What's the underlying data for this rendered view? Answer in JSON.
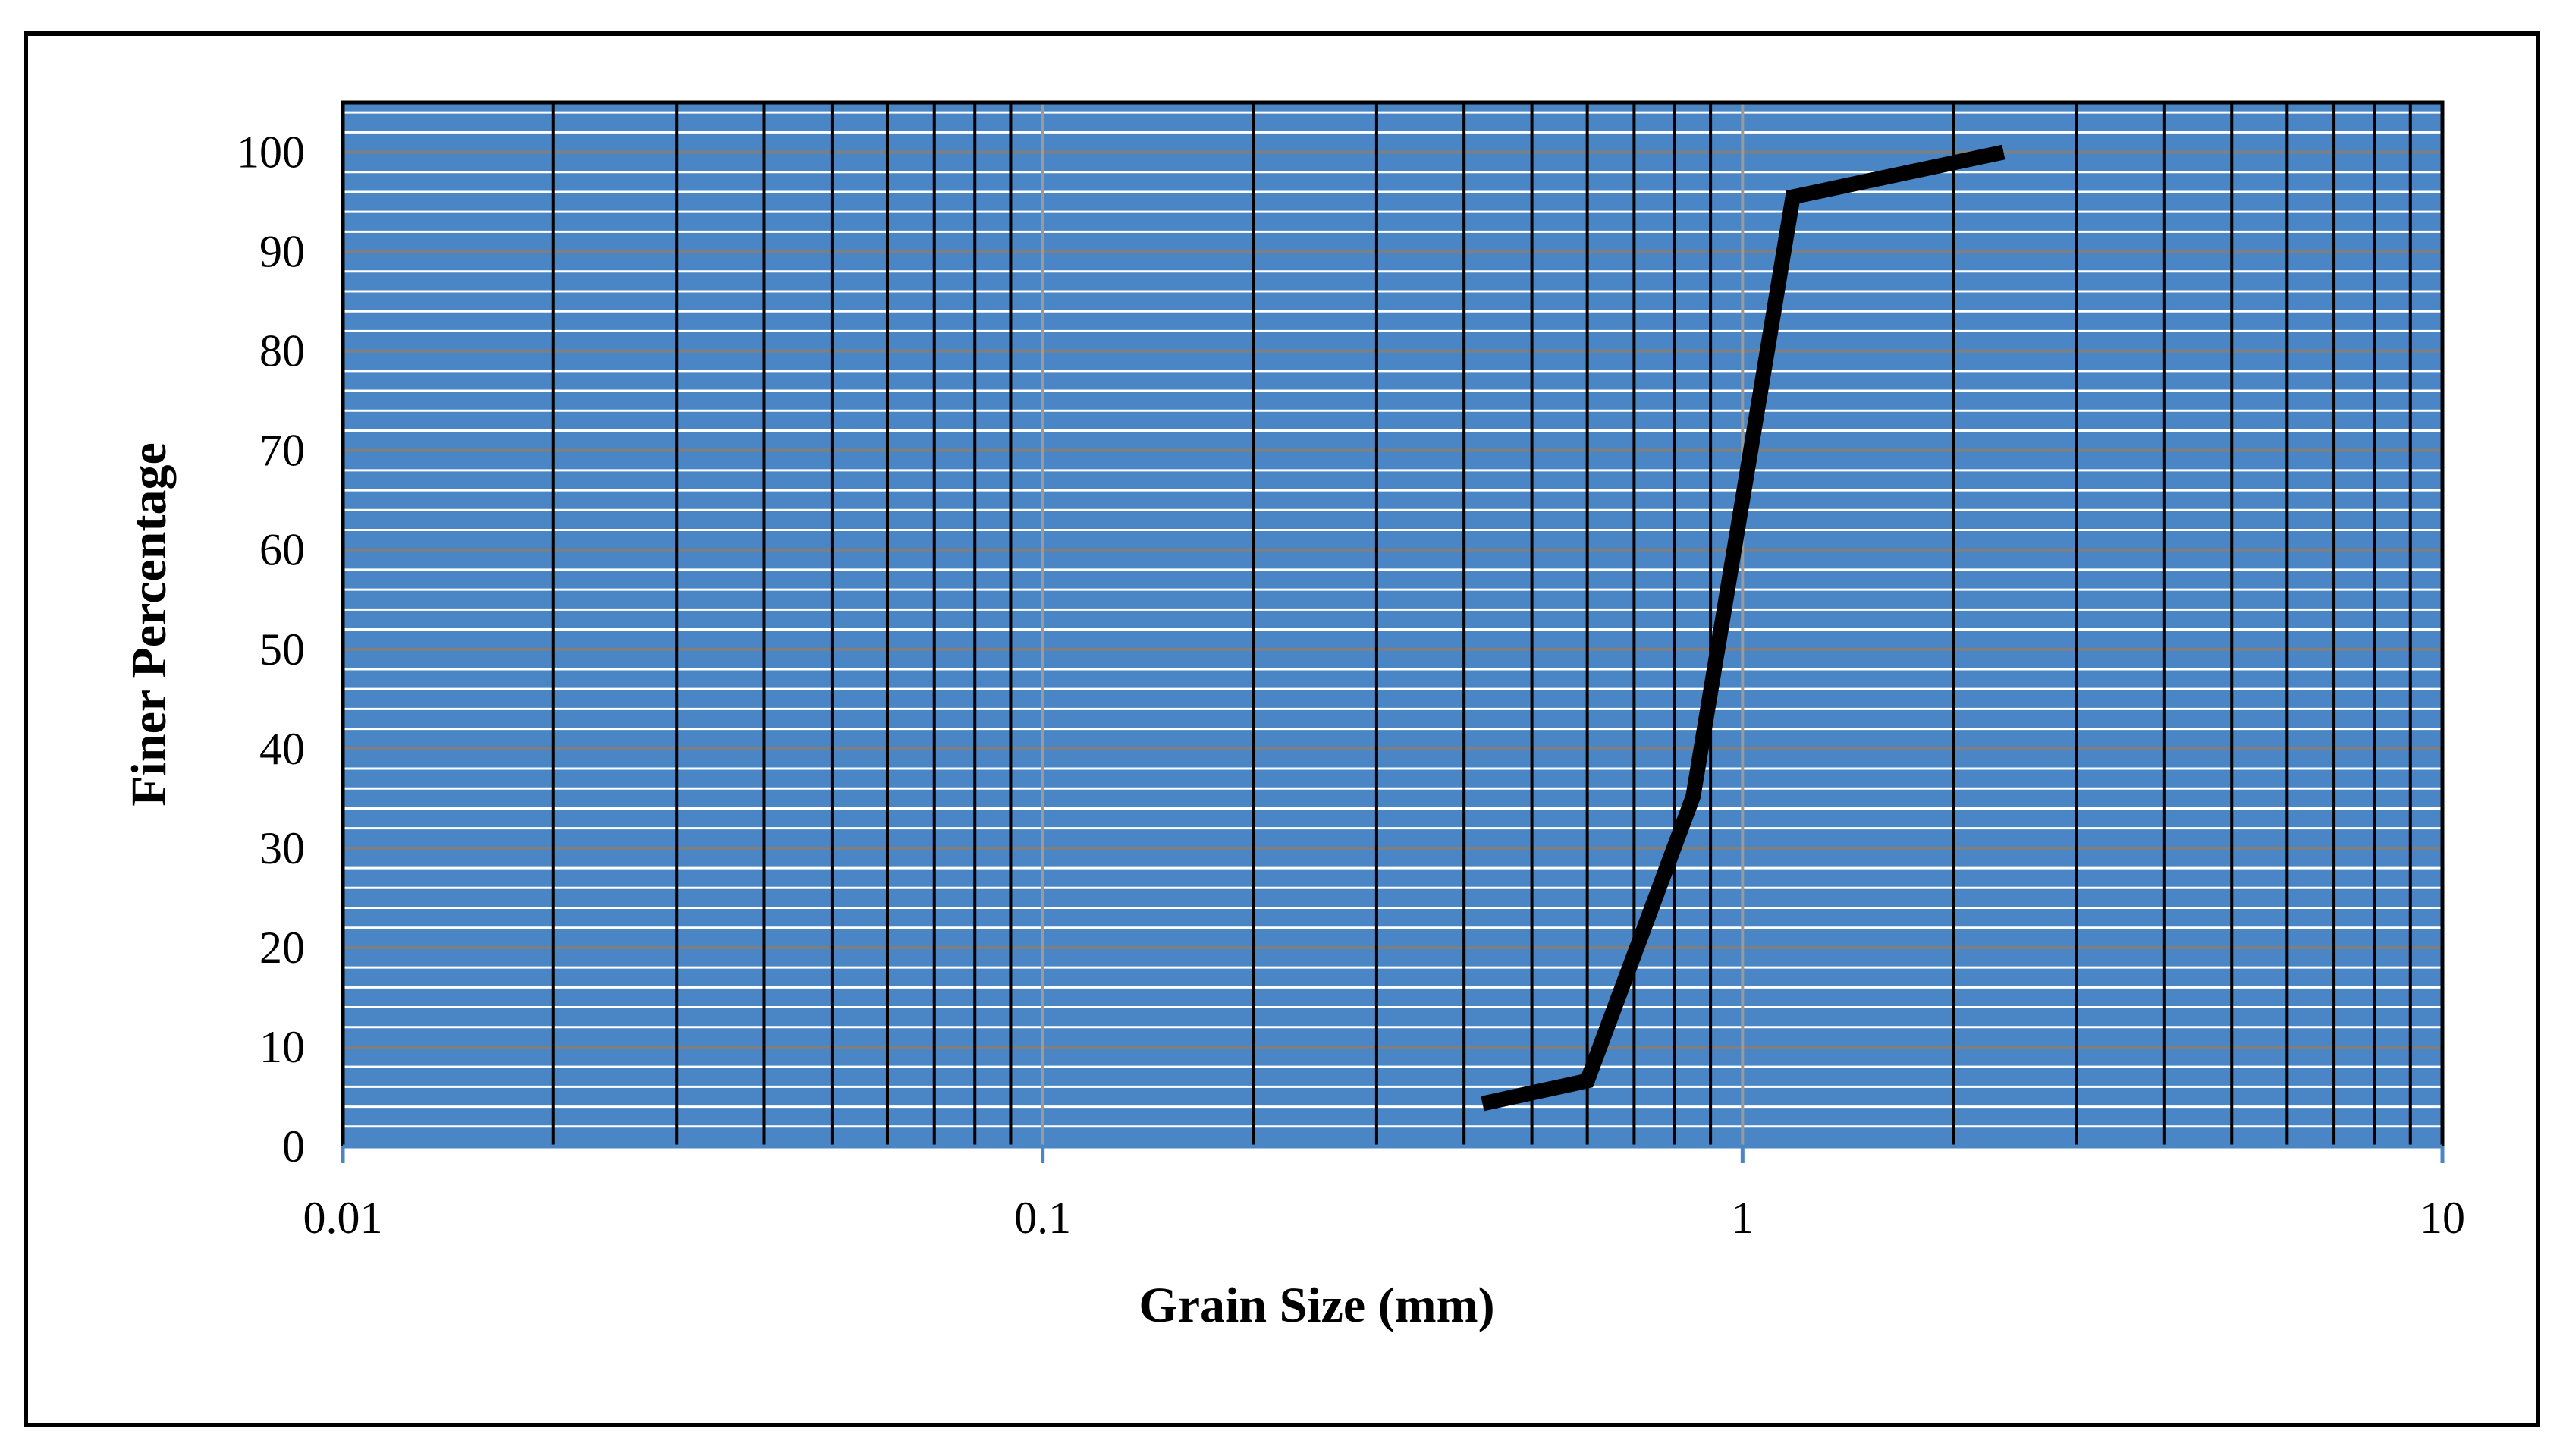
{
  "chart_data": {
    "type": "line",
    "title": "",
    "xlabel": "Grain Size (mm)",
    "ylabel": "Finer Percentage",
    "x_scale": "log",
    "xlim": [
      0.01,
      10
    ],
    "ylim": [
      0,
      105
    ],
    "x_tick_labels": [
      "0.01",
      "0.1",
      "1",
      "10"
    ],
    "y_tick_labels": [
      "0",
      "10",
      "20",
      "30",
      "40",
      "50",
      "60",
      "70",
      "80",
      "90",
      "100"
    ],
    "grid": {
      "major_x": true,
      "minor_x": true,
      "major_y": true,
      "minor_y": true
    },
    "legend": "none",
    "series": [
      {
        "x": [
          0.425,
          0.6,
          0.85,
          1.18,
          2.36
        ],
        "y": [
          4.3,
          6.6,
          35.2,
          95.5,
          100
        ],
        "color": "#000000"
      }
    ],
    "colors": {
      "plot_background": "#4a86c5",
      "minor_gridline_y": "#ffffff",
      "major_gridline_y": "#7f7f7f",
      "minor_gridline_x": "#000000",
      "major_gridline_x": "#9a9a9a",
      "axis_line": "#4a86c5",
      "frame": "#000000"
    }
  }
}
